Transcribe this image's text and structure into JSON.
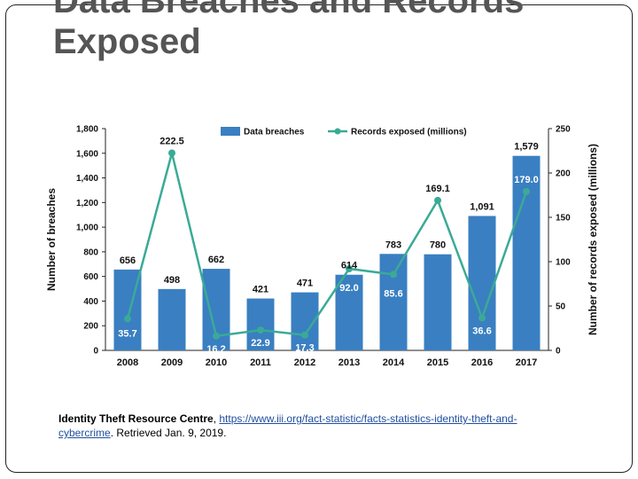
{
  "slide": {
    "title_line1": "Data Breaches and Records",
    "title_line2": "Exposed"
  },
  "source": {
    "org": "Identity Theft Resource Centre",
    "sep": ", ",
    "url": "https://www.iii.org/fact-statistic/facts-statistics-identity-theft-and-cybercrime",
    "retrieved": ". Retrieved Jan. 9, 2019."
  },
  "chart_data": {
    "type": "bar",
    "categories": [
      "2008",
      "2009",
      "2010",
      "2011",
      "2012",
      "2013",
      "2014",
      "2015",
      "2016",
      "2017"
    ],
    "series": [
      {
        "name": "Data breaches",
        "axis": "left",
        "kind": "bar",
        "color": "#3a7fc1",
        "values": [
          656,
          498,
          662,
          421,
          471,
          614,
          783,
          780,
          1091,
          1579
        ],
        "labels": [
          "656",
          "498",
          "662",
          "421",
          "471",
          "614",
          "783",
          "780",
          "1,091",
          "1,579"
        ]
      },
      {
        "name": "Records exposed (millions)",
        "axis": "right",
        "kind": "line",
        "color": "#3aaa96",
        "values": [
          35.7,
          222.5,
          16.2,
          22.9,
          17.3,
          92.0,
          85.6,
          169.1,
          36.6,
          179.0
        ],
        "labels": [
          "35.7",
          "222.5",
          "16.2",
          "22.9",
          "17.3",
          "92.0",
          "85.6",
          "169.1",
          "36.6",
          "179.0"
        ]
      }
    ],
    "ylabel_left": "Number of breaches",
    "ylabel_right": "Number of records exposed (millions)",
    "ylim_left": [
      0,
      1800
    ],
    "ylim_right": [
      0,
      250
    ],
    "yticks_left": [
      "0",
      "200",
      "400",
      "600",
      "800",
      "1,000",
      "1,200",
      "1,400",
      "1,600",
      "1,800"
    ],
    "yticks_right": [
      "0",
      "50",
      "100",
      "150",
      "200",
      "250"
    ],
    "legend": [
      "Data breaches",
      "Records exposed (millions)"
    ],
    "grid": false
  }
}
